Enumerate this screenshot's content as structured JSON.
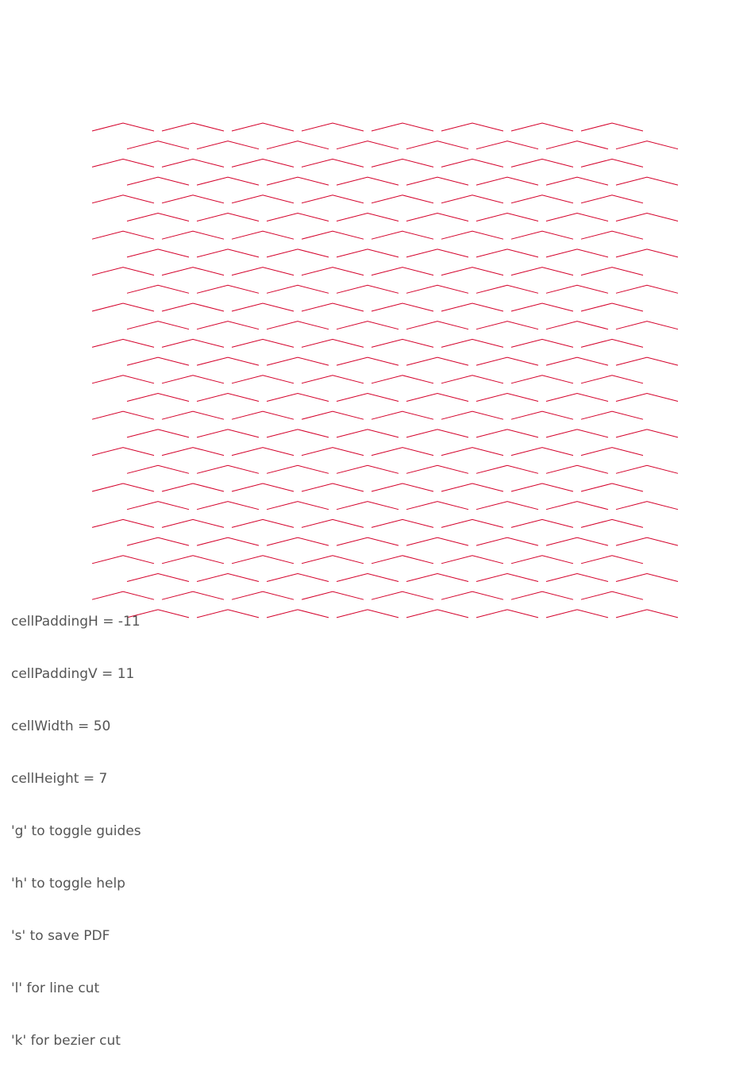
{
  "pattern": {
    "stroke_color": "#d4002a",
    "rows": 28,
    "columns": 8
  },
  "help": {
    "color": "#555555",
    "lines": [
      "cellPaddingH = -11",
      "cellPaddingV = 11",
      "cellWidth = 50",
      "cellHeight = 7",
      "'g' to toggle guides",
      "'h' to toggle help",
      "'s' to save PDF",
      "'l' for line cut",
      "'k' for bezier cut"
    ]
  }
}
